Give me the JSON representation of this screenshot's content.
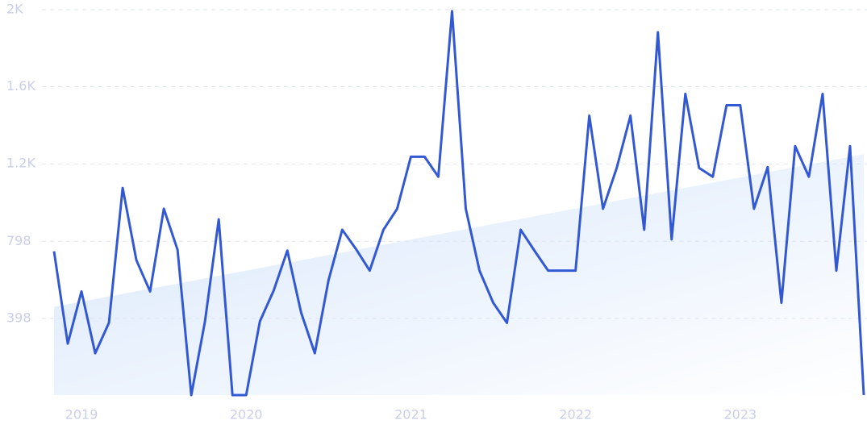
{
  "chart_data": {
    "type": "line",
    "categories": [
      null,
      null,
      "2019",
      null,
      null,
      null,
      null,
      null,
      null,
      null,
      null,
      null,
      null,
      null,
      "2020",
      null,
      null,
      null,
      null,
      null,
      null,
      null,
      null,
      null,
      null,
      null,
      "2021",
      null,
      null,
      null,
      null,
      null,
      null,
      null,
      null,
      null,
      null,
      null,
      "2022",
      null,
      null,
      null,
      null,
      null,
      null,
      null,
      null,
      null,
      null,
      null,
      "2023",
      null,
      null,
      null,
      null,
      null,
      null,
      null,
      null,
      null
    ],
    "series": [
      {
        "color": "#3358d4",
        "values": [
          746,
          267,
          538,
          217,
          375,
          1075,
          700,
          538,
          967,
          754,
          0,
          383,
          912,
          0,
          0,
          383,
          542,
          750,
          429,
          217,
          596,
          858,
          758,
          646,
          858,
          967,
          1237,
          1237,
          1133,
          1992,
          967,
          646,
          479,
          375,
          858,
          750,
          646,
          646,
          646,
          1450,
          967,
          1179,
          1450,
          858,
          1883,
          808,
          1563,
          1179,
          1133,
          1504,
          1504,
          967,
          1183,
          479,
          1292,
          1133,
          1563,
          646,
          1292,
          0
        ]
      }
    ],
    "trend": {
      "color": "#dbe9fb",
      "values": [
        458,
        1250
      ]
    },
    "ylim": [
      0,
      2000
    ],
    "yticks": [
      {
        "value": 398,
        "label": "398"
      },
      {
        "value": 798,
        "label": "798"
      },
      {
        "value": 1200,
        "label": "1.2K"
      },
      {
        "value": 1600,
        "label": "1.6K"
      },
      {
        "value": 2000,
        "label": "2K"
      }
    ],
    "grid": true
  }
}
